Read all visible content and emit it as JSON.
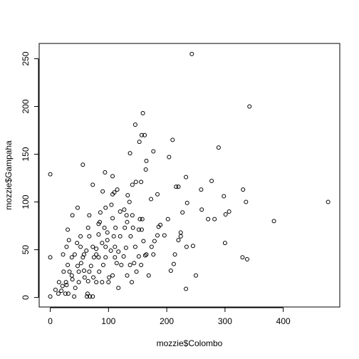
{
  "chart_data": {
    "type": "scatter",
    "xlabel": "mozzie$Colombo",
    "ylabel": "mozzie$Gampaha",
    "xlim": [
      -19,
      497
    ],
    "ylim": [
      -10,
      266
    ],
    "xticks": [
      0,
      100,
      200,
      300,
      400
    ],
    "yticks": [
      0,
      50,
      100,
      150,
      200,
      250
    ],
    "color": "#000000",
    "x": [
      243,
      342,
      477,
      384,
      330,
      338,
      331,
      336,
      307,
      301,
      298,
      300,
      289,
      277,
      282,
      271,
      259,
      260,
      233,
      235,
      234,
      233,
      250,
      245,
      224,
      227,
      220,
      216,
      210,
      204,
      224,
      220,
      214,
      207,
      212,
      159,
      157,
      162,
      146,
      137,
      165,
      164,
      177,
      153,
      156,
      147,
      141,
      173,
      184,
      186,
      189,
      202,
      196,
      184,
      179,
      177,
      174,
      169,
      165,
      160,
      163,
      158,
      154,
      157,
      152,
      133,
      136,
      132,
      127,
      131,
      107,
      115,
      110,
      105,
      107,
      112,
      109,
      111,
      117,
      114,
      117,
      90,
      94,
      73,
      56,
      0,
      0,
      98,
      98,
      95,
      101,
      100,
      83,
      79,
      75,
      70,
      67,
      65,
      63,
      68,
      73,
      64,
      46,
      52,
      56,
      49,
      58,
      38,
      47,
      32,
      28,
      27,
      21,
      19,
      14,
      9,
      0,
      33,
      38,
      43,
      31,
      26,
      41,
      23,
      15,
      30,
      130,
      138,
      126,
      122,
      144,
      148,
      140,
      84,
      89,
      79,
      74,
      62,
      67,
      65,
      83,
      86,
      52,
      58,
      42,
      37,
      53,
      47,
      59,
      49,
      89,
      93,
      104,
      111,
      120,
      120,
      128,
      142,
      141,
      146,
      152,
      156,
      137,
      132,
      107,
      91,
      83,
      73,
      67,
      79,
      95,
      107,
      95,
      85,
      22,
      30,
      37,
      28
    ],
    "y": [
      255,
      200,
      100,
      80,
      42,
      40,
      113,
      100,
      90,
      87,
      106,
      57,
      157,
      122,
      82,
      82,
      113,
      92,
      126,
      99,
      53,
      9,
      23,
      54,
      64,
      89,
      116,
      116,
      165,
      147,
      68,
      60,
      45,
      28,
      35,
      193,
      170,
      170,
      181,
      151,
      143,
      134,
      153,
      163,
      121,
      121,
      118,
      103,
      108,
      74,
      76,
      82,
      65,
      65,
      59,
      45,
      53,
      23,
      45,
      59,
      44,
      82,
      82,
      71,
      71,
      107,
      100,
      79,
      92,
      86,
      127,
      113,
      110,
      97,
      83,
      73,
      64,
      53,
      48,
      36,
      10,
      111,
      131,
      118,
      139,
      129,
      42,
      68,
      60,
      42,
      21,
      16,
      66,
      51,
      42,
      33,
      27,
      17,
      1,
      1,
      1,
      4,
      57,
      64,
      42,
      27,
      28,
      86,
      94,
      60,
      53,
      16,
      12,
      7,
      4,
      8,
      1,
      27,
      19,
      10,
      4,
      4,
      1,
      27,
      16,
      34,
      52,
      64,
      43,
      34,
      36,
      27,
      16,
      27,
      16,
      16,
      21,
      49,
      86,
      73,
      77,
      89,
      53,
      45,
      45,
      42,
      36,
      33,
      21,
      16,
      57,
      73,
      49,
      42,
      64,
      90,
      73,
      73,
      86,
      53,
      43,
      34,
      34,
      23,
      23,
      34,
      42,
      53,
      64,
      45,
      53,
      108,
      94,
      79,
      45,
      71,
      23,
      13
    ]
  }
}
